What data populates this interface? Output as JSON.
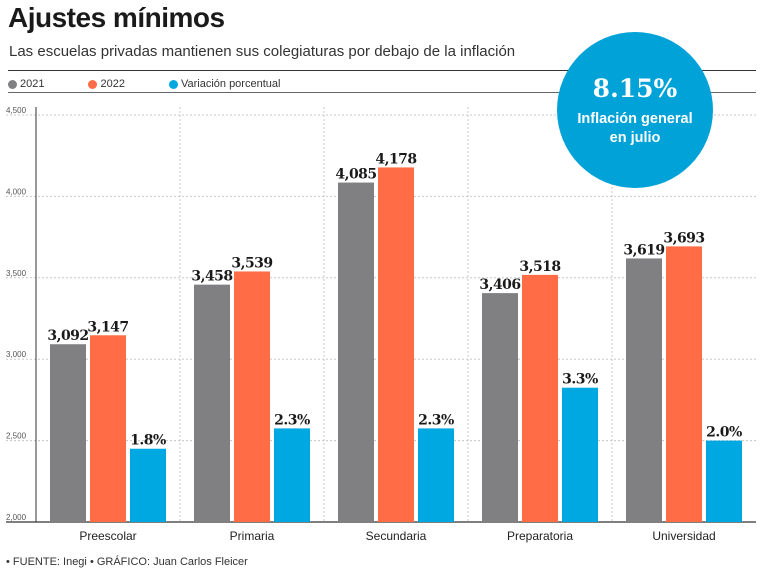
{
  "header": {
    "title": "Ajustes mínimos",
    "subtitle": "Las escuelas privadas mantienen sus colegiaturas por debajo de la inflación"
  },
  "legend": [
    {
      "label": "2021",
      "color": "#808083"
    },
    {
      "label": "2022",
      "color": "#ff6c45"
    },
    {
      "label": "Variación porcentual",
      "color": "#00a8e1"
    }
  ],
  "highlight": {
    "value": "8.15%",
    "label": "Inflación general en julio"
  },
  "footer": {
    "source": "• FUENTE: Inegi",
    "graphic": "• GRÁFICO: Juan Carlos Fleicer"
  },
  "chart_data": {
    "type": "bar",
    "title": "Ajustes mínimos",
    "categories": [
      "Preescolar",
      "Primaria",
      "Secundaria",
      "Preparatoria",
      "Universidad"
    ],
    "series": [
      {
        "name": "2021",
        "values": [
          3092,
          3458,
          4085,
          3406,
          3619
        ],
        "labels": [
          "3,092",
          "3,458",
          "4,085",
          "3,406",
          "3,619"
        ],
        "color": "#808083"
      },
      {
        "name": "2022",
        "values": [
          3147,
          3539,
          4178,
          3518,
          3693
        ],
        "labels": [
          "3,147",
          "3,539",
          "4,178",
          "3,518",
          "3,693"
        ],
        "color": "#ff6c45"
      },
      {
        "name": "Variación porcentual",
        "values": [
          1.8,
          2.3,
          2.3,
          3.3,
          2.0
        ],
        "labels": [
          "1.8%",
          "2.3%",
          "2.3%",
          "3.3%",
          "2.0%"
        ],
        "color": "#00a8e1"
      }
    ],
    "yticks": [
      "2,000",
      "2,500",
      "3,000",
      "3,500",
      "4,000",
      "4,500"
    ],
    "ytick_values": [
      2000,
      2500,
      3000,
      3500,
      4000,
      4500
    ],
    "ylim": [
      2000,
      4500
    ],
    "pct_scale": {
      "base_value": 2000,
      "units_per_percent": 250
    },
    "xlabel": "",
    "ylabel": "",
    "grid": true
  }
}
